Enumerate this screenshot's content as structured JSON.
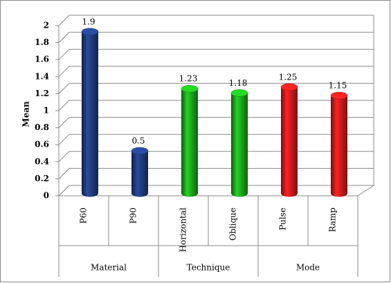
{
  "chart_data": {
    "type": "bar",
    "y_label": "Mean",
    "ylim": [
      0,
      2
    ],
    "yticks": [
      0,
      0.2,
      0.4,
      0.6,
      0.8,
      1,
      1.2,
      1.4,
      1.6,
      1.8,
      2
    ],
    "grid": true,
    "groups": [
      {
        "name": "Material",
        "categories": [
          "P60",
          "P90"
        ],
        "values": [
          1.9,
          0.5
        ],
        "color": "#1f3a7a"
      },
      {
        "name": "Technique",
        "categories": [
          "Horizontal",
          "Oblique"
        ],
        "values": [
          1.23,
          1.18
        ],
        "color": "#1aa31a"
      },
      {
        "name": "Mode",
        "categories": [
          "Pulse",
          "Ramp"
        ],
        "values": [
          1.25,
          1.15
        ],
        "color": "#d11a1a"
      }
    ]
  }
}
